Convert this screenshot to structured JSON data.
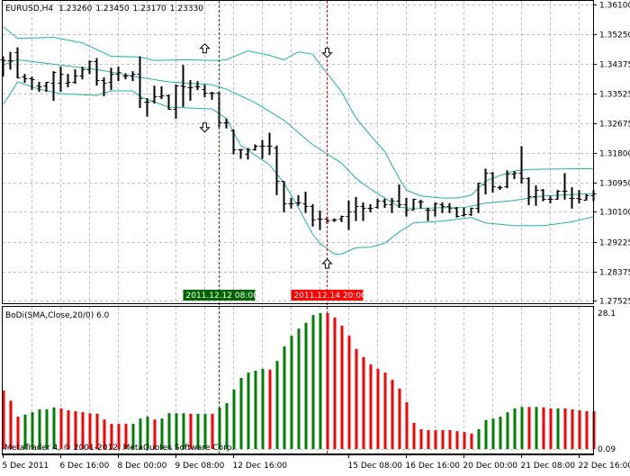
{
  "header": {
    "symbol": "EURUSD,H4",
    "open": "1.23260",
    "high": "1.23450",
    "low": "1.23170",
    "close": "1.23330"
  },
  "indicator": {
    "label": "BoDi(SMA,Close,20/0) 6.0",
    "max_label": "28.1",
    "min_label": "0.09"
  },
  "copyright": "MetaTrader 4, © 2001-2012, MetaQuotes Software Corp.",
  "colors": {
    "bands": "#20b2aa",
    "up": "#008000",
    "down": "#ff0000",
    "bars": "#000000",
    "grid": "#c0c0c0"
  },
  "price_axis": [
    "1.36100",
    "1.35250",
    "1.34375",
    "1.33525",
    "1.32675",
    "1.31800",
    "1.30950",
    "1.30100",
    "1.29225",
    "1.28375",
    "1.27525"
  ],
  "time_axis": [
    {
      "bar": 0,
      "label": "5 Dec 2011"
    },
    {
      "bar": 8,
      "label": "6 Dec 16:00"
    },
    {
      "bar": 16,
      "label": "8 Dec 00:00"
    },
    {
      "bar": 24,
      "label": "9 Dec 08:00"
    },
    {
      "bar": 32,
      "label": "12 Dec 16:00"
    },
    {
      "bar": 48,
      "label": "15 Dec 08:00"
    },
    {
      "bar": 56,
      "label": "16 Dec 16:00"
    },
    {
      "bar": 64,
      "label": "20 Dec 00:00"
    },
    {
      "bar": 72,
      "label": "21 Dec 08:00"
    },
    {
      "bar": 80,
      "label": "22 Dec 16:00"
    }
  ],
  "markers": [
    {
      "bar": 30,
      "label": "2011.12.12 08:00",
      "color": "#006400"
    },
    {
      "bar": 45,
      "label": "2011.12.14 20:00",
      "color": "#ff0000"
    }
  ],
  "arrows": [
    {
      "bar": 29,
      "dir": "up",
      "price": 1.3483
    },
    {
      "bar": 29,
      "dir": "down",
      "price": 1.3254
    },
    {
      "bar": 46,
      "dir": "down",
      "price": 1.347
    },
    {
      "bar": 46,
      "dir": "up",
      "price": 1.286
    }
  ],
  "chart_data": {
    "type": "ohlc",
    "price_range": [
      1.27525,
      1.361
    ],
    "ohlc": [
      [
        1.345,
        1.346,
        1.3404,
        1.3448
      ],
      [
        1.3448,
        1.3473,
        1.3424,
        1.3448
      ],
      [
        1.3471,
        1.3486,
        1.3399,
        1.3399
      ],
      [
        1.3401,
        1.3409,
        1.3386,
        1.3396
      ],
      [
        1.3396,
        1.3401,
        1.3365,
        1.3393
      ],
      [
        1.3375,
        1.3386,
        1.336,
        1.3373
      ],
      [
        1.3375,
        1.3386,
        1.336,
        1.3386
      ],
      [
        1.3383,
        1.3417,
        1.3334,
        1.3414
      ],
      [
        1.3383,
        1.343,
        1.336,
        1.3409
      ],
      [
        1.3383,
        1.3409,
        1.3373,
        1.3386
      ],
      [
        1.3386,
        1.3422,
        1.3383,
        1.3404
      ],
      [
        1.3404,
        1.343,
        1.3396,
        1.3422
      ],
      [
        1.3422,
        1.3448,
        1.3411,
        1.3445
      ],
      [
        1.3445,
        1.3455,
        1.3378,
        1.3391
      ],
      [
        1.3391,
        1.3399,
        1.3347,
        1.3383
      ],
      [
        1.3386,
        1.3427,
        1.3365,
        1.3409
      ],
      [
        1.3409,
        1.343,
        1.3391,
        1.3414
      ],
      [
        1.3404,
        1.3411,
        1.3396,
        1.3404
      ],
      [
        1.3404,
        1.3417,
        1.3391,
        1.3409
      ],
      [
        1.3409,
        1.346,
        1.3313,
        1.3339
      ],
      [
        1.3329,
        1.3339,
        1.3288,
        1.3329
      ],
      [
        1.3331,
        1.3375,
        1.3326,
        1.3344
      ],
      [
        1.3344,
        1.3373,
        1.3339,
        1.3347
      ],
      [
        1.3347,
        1.335,
        1.3308,
        1.3308
      ],
      [
        1.3308,
        1.3378,
        1.3282,
        1.3375
      ],
      [
        1.3375,
        1.3435,
        1.3316,
        1.3373
      ],
      [
        1.337,
        1.3391,
        1.3334,
        1.337
      ],
      [
        1.3373,
        1.3388,
        1.3365,
        1.3373
      ],
      [
        1.3365,
        1.3378,
        1.3344,
        1.3355
      ],
      [
        1.3355,
        1.3357,
        1.3337,
        1.3355
      ],
      [
        1.3355,
        1.3357,
        1.3257,
        1.327
      ],
      [
        1.327,
        1.328,
        1.3254,
        1.327
      ],
      [
        1.3246,
        1.3249,
        1.3179,
        1.3192
      ],
      [
        1.319,
        1.3192,
        1.3166,
        1.319
      ],
      [
        1.3179,
        1.3195,
        1.3164,
        1.3192
      ],
      [
        1.3192,
        1.3205,
        1.319,
        1.3202
      ],
      [
        1.3202,
        1.3218,
        1.3166,
        1.3202
      ],
      [
        1.32,
        1.3239,
        1.3177,
        1.32
      ],
      [
        1.3197,
        1.3202,
        1.3061,
        1.3099
      ],
      [
        1.3099,
        1.3099,
        1.3011,
        1.3035
      ],
      [
        1.3035,
        1.305,
        1.3022,
        1.3035
      ],
      [
        1.3037,
        1.3058,
        1.303,
        1.3037
      ],
      [
        1.3035,
        1.3068,
        1.3009,
        1.3027
      ],
      [
        1.3027,
        1.3032,
        1.297,
        1.2988
      ],
      [
        1.2991,
        1.3014,
        1.296,
        1.2991
      ],
      [
        1.2991,
        1.2996,
        1.2978,
        1.2986
      ],
      [
        1.2988,
        1.2991,
        1.2983,
        1.2988
      ],
      [
        1.2991,
        1.2999,
        1.2983,
        1.2999
      ],
      [
        1.2999,
        1.3043,
        1.296,
        1.3011
      ],
      [
        1.3011,
        1.3053,
        1.2986,
        1.3027
      ],
      [
        1.3027,
        1.3037,
        1.2986,
        1.3022
      ],
      [
        1.3022,
        1.3032,
        1.3011,
        1.3022
      ],
      [
        1.3024,
        1.3048,
        1.3022,
        1.3043
      ],
      [
        1.3043,
        1.3048,
        1.3024,
        1.3032
      ],
      [
        1.3032,
        1.305,
        1.3009,
        1.3043
      ],
      [
        1.3043,
        1.3089,
        1.3024,
        1.3032
      ],
      [
        1.3032,
        1.305,
        1.2999,
        1.3017
      ],
      [
        1.3017,
        1.3048,
        1.3017,
        1.3048
      ],
      [
        1.304,
        1.3045,
        1.3022,
        1.304
      ],
      [
        1.3017,
        1.3022,
        1.2986,
        1.3017
      ],
      [
        1.3017,
        1.3037,
        1.2999,
        1.3035
      ],
      [
        1.3032,
        1.3037,
        1.3009,
        1.3027
      ],
      [
        1.3027,
        1.3035,
        1.3009,
        1.3022
      ],
      [
        1.3022,
        1.3024,
        1.2996,
        1.2999
      ],
      [
        1.3001,
        1.3022,
        1.2999,
        1.3004
      ],
      [
        1.3004,
        1.3022,
        1.3001,
        1.3022
      ],
      [
        1.3022,
        1.3094,
        1.3009,
        1.3094
      ],
      [
        1.3089,
        1.3135,
        1.3063,
        1.3122
      ],
      [
        1.3122,
        1.3125,
        1.3068,
        1.3084
      ],
      [
        1.3081,
        1.3086,
        1.3076,
        1.3081
      ],
      [
        1.3084,
        1.313,
        1.3081,
        1.312
      ],
      [
        1.312,
        1.3128,
        1.3107,
        1.3122
      ],
      [
        1.3122,
        1.32,
        1.3094,
        1.3107
      ],
      [
        1.3107,
        1.311,
        1.3032,
        1.3056
      ],
      [
        1.3056,
        1.3086,
        1.303,
        1.3073
      ],
      [
        1.3073,
        1.3076,
        1.3043,
        1.3048
      ],
      [
        1.3048,
        1.3056,
        1.3037,
        1.3048
      ],
      [
        1.3048,
        1.3073,
        1.3048,
        1.3071
      ],
      [
        1.3071,
        1.3122,
        1.3048,
        1.3071
      ],
      [
        1.305,
        1.3081,
        1.3022,
        1.305
      ],
      [
        1.305,
        1.3073,
        1.3037,
        1.3048
      ],
      [
        1.3045,
        1.3061,
        1.3045,
        1.3058
      ],
      [
        1.3058,
        1.3073,
        1.3043,
        1.3063
      ]
    ],
    "bands": {
      "upper": [
        [
          0,
          1.3546
        ],
        [
          2,
          1.3512
        ],
        [
          7,
          1.3515
        ],
        [
          11,
          1.3499
        ],
        [
          15,
          1.346
        ],
        [
          19,
          1.3458
        ],
        [
          21,
          1.3448
        ],
        [
          25,
          1.345
        ],
        [
          30,
          1.3448
        ],
        [
          31,
          1.345
        ],
        [
          34,
          1.3476
        ],
        [
          37,
          1.3463
        ],
        [
          39,
          1.345
        ],
        [
          41,
          1.3473
        ],
        [
          43,
          1.3466
        ],
        [
          44,
          1.3437
        ],
        [
          45,
          1.3411
        ],
        [
          47,
          1.3357
        ],
        [
          49,
          1.3282
        ],
        [
          51,
          1.3231
        ],
        [
          53,
          1.3184
        ],
        [
          55,
          1.3107
        ],
        [
          56,
          1.3073
        ],
        [
          58,
          1.3056
        ],
        [
          61,
          1.305
        ],
        [
          63,
          1.305
        ],
        [
          65,
          1.3058
        ],
        [
          67,
          1.3099
        ],
        [
          69,
          1.3115
        ],
        [
          71,
          1.3128
        ],
        [
          73,
          1.3133
        ],
        [
          82,
          1.3135
        ]
      ],
      "middle": [
        [
          0,
          1.3435
        ],
        [
          2,
          1.345
        ],
        [
          7,
          1.3437
        ],
        [
          13,
          1.3422
        ],
        [
          19,
          1.3399
        ],
        [
          23,
          1.3386
        ],
        [
          29,
          1.3378
        ],
        [
          31,
          1.3365
        ],
        [
          35,
          1.3326
        ],
        [
          39,
          1.3275
        ],
        [
          43,
          1.3204
        ],
        [
          47,
          1.3151
        ],
        [
          49,
          1.3107
        ],
        [
          51,
          1.3076
        ],
        [
          53,
          1.305
        ],
        [
          55,
          1.3024
        ],
        [
          57,
          1.3019
        ],
        [
          61,
          1.3022
        ],
        [
          64,
          1.3022
        ],
        [
          67,
          1.3035
        ],
        [
          71,
          1.3043
        ],
        [
          75,
          1.3056
        ],
        [
          82,
          1.3063
        ]
      ],
      "lower": [
        [
          0,
          1.3321
        ],
        [
          1,
          1.3352
        ],
        [
          2,
          1.3386
        ],
        [
          5,
          1.3365
        ],
        [
          8,
          1.3352
        ],
        [
          13,
          1.3347
        ],
        [
          15,
          1.336
        ],
        [
          18,
          1.336
        ],
        [
          19,
          1.3344
        ],
        [
          23,
          1.3313
        ],
        [
          29,
          1.3308
        ],
        [
          31,
          1.328
        ],
        [
          33,
          1.3202
        ],
        [
          37,
          1.3146
        ],
        [
          39,
          1.3094
        ],
        [
          41,
          1.3022
        ],
        [
          43,
          1.2945
        ],
        [
          44,
          1.2919
        ],
        [
          46,
          1.2888
        ],
        [
          47,
          1.2888
        ],
        [
          49,
          1.2906
        ],
        [
          51,
          1.2908
        ],
        [
          53,
          1.2919
        ],
        [
          55,
          1.2952
        ],
        [
          57,
          1.2978
        ],
        [
          61,
          1.2983
        ],
        [
          65,
          1.2994
        ],
        [
          67,
          1.2978
        ],
        [
          71,
          1.297
        ],
        [
          75,
          1.297
        ],
        [
          79,
          1.2981
        ],
        [
          82,
          1.2996
        ]
      ]
    },
    "histogram": {
      "range": [
        0,
        28.1
      ],
      "values": [
        12.1,
        10.0,
        6.7,
        7.1,
        7.6,
        8.2,
        8.2,
        8.6,
        8.4,
        8.0,
        7.8,
        7.6,
        7.4,
        7.3,
        6.1,
        5.2,
        5.2,
        5.2,
        5.2,
        6.3,
        6.7,
        6.1,
        6.3,
        7.4,
        7.4,
        7.4,
        7.3,
        7.3,
        7.3,
        7.3,
        8.6,
        9.5,
        12.3,
        14.7,
        15.8,
        16.2,
        16.6,
        16.4,
        18.2,
        21.2,
        23.4,
        24.9,
        26.1,
        27.7,
        28.1,
        28.1,
        27.2,
        25.5,
        23.4,
        20.7,
        19.0,
        17.5,
        16.6,
        15.8,
        14.3,
        12.5,
        9.7,
        5.4,
        4.1,
        3.9,
        3.9,
        3.9,
        3.9,
        3.7,
        3.5,
        3.2,
        4.1,
        6.0,
        6.3,
        6.7,
        7.6,
        8.4,
        8.7,
        8.7,
        8.7,
        8.6,
        8.4,
        8.4,
        8.4,
        8.2,
        8.0,
        7.8,
        7.8
      ],
      "direction": "rrrgggggrrrrrrrrrrgggrggggrggrgggggggrgggggggrrrrrrrrrrrrrrrrrrrrrgggggggrgrrgrrrrr"
    }
  }
}
